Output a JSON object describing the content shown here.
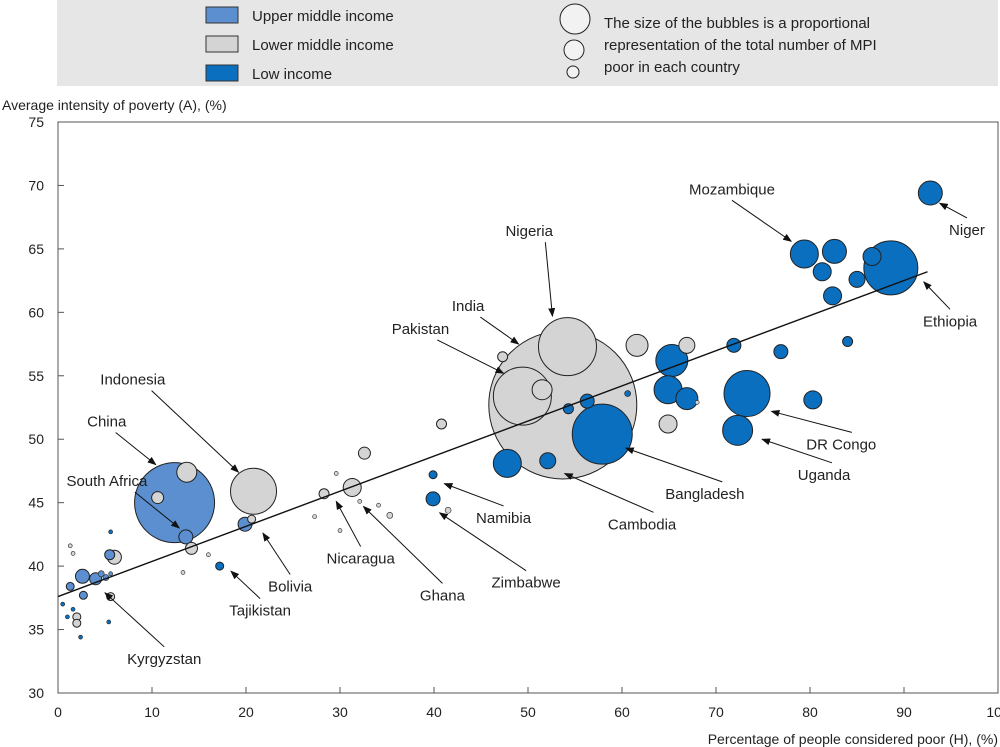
{
  "chart_data": {
    "type": "scatter",
    "xlabel": "Percentage of people considered poor (H), (%)",
    "ylabel": "Average intensity of poverty (A), (%)",
    "xlim": [
      0,
      100
    ],
    "ylim": [
      30,
      75
    ],
    "x_ticks": [
      0,
      10,
      20,
      30,
      40,
      50,
      60,
      70,
      80,
      90,
      100
    ],
    "y_ticks": [
      30,
      35,
      40,
      45,
      50,
      55,
      60,
      65,
      70,
      75
    ],
    "grid": false,
    "legend": {
      "placement": "top",
      "income_groups": [
        {
          "key": "upper",
          "label": "Upper middle income",
          "color": "#5b8fd0"
        },
        {
          "key": "lower",
          "label": "Lower middle income",
          "color": "#d4d4d4"
        },
        {
          "key": "low",
          "label": "Low income",
          "color": "#0b6fbf"
        }
      ],
      "size_note": [
        "The size of the bubbles is a proportional",
        "representation of the total number of MPI",
        "poor in each country"
      ]
    },
    "trendline": {
      "x": [
        0,
        92.5
      ],
      "y": [
        37.6,
        63.2
      ]
    },
    "points": [
      {
        "x": 53.7,
        "y": 52.7,
        "r": 74,
        "group": "lower"
      },
      {
        "x": 54.2,
        "y": 57.3,
        "r": 29,
        "group": "lower"
      },
      {
        "x": 49.4,
        "y": 53.4,
        "r": 29,
        "group": "lower"
      },
      {
        "x": 57.9,
        "y": 50.4,
        "r": 30,
        "group": "low"
      },
      {
        "x": 12.4,
        "y": 45.0,
        "r": 40,
        "group": "upper"
      },
      {
        "x": 20.8,
        "y": 45.9,
        "r": 23,
        "group": "lower"
      },
      {
        "x": 88.6,
        "y": 63.5,
        "r": 27,
        "group": "low"
      },
      {
        "x": 73.3,
        "y": 53.6,
        "r": 23,
        "group": "low"
      },
      {
        "x": 65.3,
        "y": 56.2,
        "r": 16,
        "group": "low"
      },
      {
        "x": 64.9,
        "y": 53.9,
        "r": 14,
        "group": "low"
      },
      {
        "x": 47.8,
        "y": 48.1,
        "r": 14,
        "group": "low"
      },
      {
        "x": 72.3,
        "y": 50.7,
        "r": 15,
        "group": "low"
      },
      {
        "x": 79.4,
        "y": 64.6,
        "r": 14,
        "group": "low"
      },
      {
        "x": 82.6,
        "y": 64.8,
        "r": 12,
        "group": "low"
      },
      {
        "x": 86.6,
        "y": 64.4,
        "r": 9,
        "group": "low"
      },
      {
        "x": 92.8,
        "y": 69.4,
        "r": 12,
        "group": "low"
      },
      {
        "x": 81.3,
        "y": 63.2,
        "r": 9,
        "group": "low"
      },
      {
        "x": 82.4,
        "y": 61.3,
        "r": 9,
        "group": "low"
      },
      {
        "x": 85.0,
        "y": 62.6,
        "r": 8,
        "group": "low"
      },
      {
        "x": 84.0,
        "y": 57.7,
        "r": 5,
        "group": "low"
      },
      {
        "x": 80.3,
        "y": 53.1,
        "r": 9,
        "group": "low"
      },
      {
        "x": 76.9,
        "y": 56.9,
        "r": 7,
        "group": "low"
      },
      {
        "x": 71.9,
        "y": 57.4,
        "r": 7,
        "group": "low"
      },
      {
        "x": 66.9,
        "y": 53.2,
        "r": 11,
        "group": "low"
      },
      {
        "x": 61.6,
        "y": 57.4,
        "r": 11,
        "group": "lower"
      },
      {
        "x": 66.9,
        "y": 57.4,
        "r": 8,
        "group": "lower"
      },
      {
        "x": 64.9,
        "y": 51.2,
        "r": 9,
        "group": "lower"
      },
      {
        "x": 56.3,
        "y": 53.0,
        "r": 7,
        "group": "low"
      },
      {
        "x": 54.3,
        "y": 52.4,
        "r": 5,
        "group": "low"
      },
      {
        "x": 52.1,
        "y": 48.3,
        "r": 8,
        "group": "low"
      },
      {
        "x": 60.6,
        "y": 53.6,
        "r": 3,
        "group": "low"
      },
      {
        "x": 51.5,
        "y": 53.9,
        "r": 10,
        "group": "lower"
      },
      {
        "x": 47.3,
        "y": 56.5,
        "r": 5,
        "group": "lower"
      },
      {
        "x": 68.0,
        "y": 52.9,
        "r": 2,
        "group": "lower"
      },
      {
        "x": 13.7,
        "y": 47.4,
        "r": 10,
        "group": "lower"
      },
      {
        "x": 10.6,
        "y": 45.4,
        "r": 6,
        "group": "lower"
      },
      {
        "x": 13.6,
        "y": 42.3,
        "r": 7,
        "group": "upper"
      },
      {
        "x": 14.2,
        "y": 41.4,
        "r": 6,
        "group": "lower"
      },
      {
        "x": 19.9,
        "y": 43.3,
        "r": 7,
        "group": "upper"
      },
      {
        "x": 20.6,
        "y": 43.7,
        "r": 4,
        "group": "lower"
      },
      {
        "x": 17.2,
        "y": 40.0,
        "r": 4,
        "group": "low"
      },
      {
        "x": 16.0,
        "y": 40.9,
        "r": 2,
        "group": "lower"
      },
      {
        "x": 13.3,
        "y": 39.5,
        "r": 2,
        "group": "lower"
      },
      {
        "x": 5.5,
        "y": 40.9,
        "r": 5,
        "group": "upper"
      },
      {
        "x": 6.0,
        "y": 40.7,
        "r": 7,
        "group": "lower"
      },
      {
        "x": 2.6,
        "y": 39.2,
        "r": 7,
        "group": "upper"
      },
      {
        "x": 4.0,
        "y": 39.0,
        "r": 6,
        "group": "upper"
      },
      {
        "x": 4.6,
        "y": 39.4,
        "r": 3,
        "group": "upper"
      },
      {
        "x": 5.1,
        "y": 39.1,
        "r": 3,
        "group": "upper"
      },
      {
        "x": 5.6,
        "y": 39.4,
        "r": 2,
        "group": "upper"
      },
      {
        "x": 1.3,
        "y": 38.4,
        "r": 4,
        "group": "upper"
      },
      {
        "x": 2.7,
        "y": 37.7,
        "r": 4,
        "group": "upper"
      },
      {
        "x": 5.6,
        "y": 37.6,
        "r": 4,
        "group": "lower"
      },
      {
        "x": 2.0,
        "y": 36.0,
        "r": 4,
        "group": "lower"
      },
      {
        "x": 2.0,
        "y": 35.5,
        "r": 4,
        "group": "lower"
      },
      {
        "x": 2.4,
        "y": 34.4,
        "r": 2,
        "group": "low"
      },
      {
        "x": 0.5,
        "y": 37.0,
        "r": 2,
        "group": "low"
      },
      {
        "x": 1.6,
        "y": 36.6,
        "r": 2,
        "group": "low"
      },
      {
        "x": 1.0,
        "y": 36.0,
        "r": 2,
        "group": "low"
      },
      {
        "x": 5.4,
        "y": 35.6,
        "r": 2,
        "group": "low"
      },
      {
        "x": 5.6,
        "y": 42.7,
        "r": 2,
        "group": "low"
      },
      {
        "x": 1.3,
        "y": 41.6,
        "r": 2,
        "group": "lower"
      },
      {
        "x": 1.6,
        "y": 41.0,
        "r": 2,
        "group": "lower"
      },
      {
        "x": 28.3,
        "y": 45.7,
        "r": 5,
        "group": "lower"
      },
      {
        "x": 31.3,
        "y": 46.2,
        "r": 9,
        "group": "lower"
      },
      {
        "x": 32.6,
        "y": 48.9,
        "r": 6,
        "group": "lower"
      },
      {
        "x": 29.6,
        "y": 47.3,
        "r": 2,
        "group": "lower"
      },
      {
        "x": 27.3,
        "y": 43.9,
        "r": 2,
        "group": "lower"
      },
      {
        "x": 32.1,
        "y": 45.1,
        "r": 2,
        "group": "lower"
      },
      {
        "x": 30.0,
        "y": 42.8,
        "r": 2,
        "group": "lower"
      },
      {
        "x": 35.3,
        "y": 44.0,
        "r": 3,
        "group": "lower"
      },
      {
        "x": 34.1,
        "y": 44.8,
        "r": 2,
        "group": "lower"
      },
      {
        "x": 40.8,
        "y": 51.2,
        "r": 5,
        "group": "lower"
      },
      {
        "x": 39.9,
        "y": 47.2,
        "r": 4,
        "group": "low"
      },
      {
        "x": 39.9,
        "y": 45.3,
        "r": 7,
        "group": "low"
      },
      {
        "x": 41.5,
        "y": 44.4,
        "r": 3,
        "group": "lower"
      }
    ],
    "annotations": [
      {
        "label": "Mozambique",
        "tx": 71.7,
        "ty": 69.3,
        "ax": 78.0,
        "ay": 65.6,
        "anchor": "middle"
      },
      {
        "label": "Niger",
        "tx": 96.7,
        "ty": 66.1,
        "ax": 93.8,
        "ay": 68.6,
        "anchor": "middle"
      },
      {
        "label": "Ethiopia",
        "tx": 94.9,
        "ty": 58.9,
        "ax": 92.1,
        "ay": 62.4,
        "anchor": "middle"
      },
      {
        "label": "Nigeria",
        "tx": 47.6,
        "ty": 66.0,
        "ax": 52.6,
        "ay": 59.7,
        "anchor": "start"
      },
      {
        "label": "India",
        "tx": 41.9,
        "ty": 60.1,
        "ax": 49.0,
        "ay": 57.5,
        "anchor": "start"
      },
      {
        "label": "Pakistan",
        "tx": 35.5,
        "ty": 58.3,
        "ax": 47.4,
        "ay": 55.2,
        "anchor": "start"
      },
      {
        "label": "Bangladesh",
        "tx": 64.6,
        "ty": 45.3,
        "ax": 60.4,
        "ay": 49.3,
        "anchor": "start"
      },
      {
        "label": "Cambodia",
        "tx": 58.5,
        "ty": 42.9,
        "ax": 53.9,
        "ay": 47.3,
        "anchor": "start"
      },
      {
        "label": "DR Congo",
        "tx": 79.6,
        "ty": 49.2,
        "ax": 75.9,
        "ay": 52.2,
        "anchor": "start"
      },
      {
        "label": "Uganda",
        "tx": 78.7,
        "ty": 46.8,
        "ax": 74.9,
        "ay": 50.0,
        "anchor": "start"
      },
      {
        "label": "Indonesia",
        "tx": 4.5,
        "ty": 54.3,
        "ax": 19.2,
        "ay": 47.4,
        "anchor": "start"
      },
      {
        "label": "China",
        "tx": 3.1,
        "ty": 51.0,
        "ax": 10.4,
        "ay": 48.0,
        "anchor": "start"
      },
      {
        "label": "South Africa",
        "tx": 0.9,
        "ty": 46.3,
        "ax": 12.9,
        "ay": 43.0,
        "anchor": "start"
      },
      {
        "label": "Bolivia",
        "tx": 24.7,
        "ty": 38.0,
        "ax": 21.8,
        "ay": 42.6,
        "anchor": "middle"
      },
      {
        "label": "Tajikistan",
        "tx": 21.5,
        "ty": 36.1,
        "ax": 18.4,
        "ay": 39.6,
        "anchor": "middle"
      },
      {
        "label": "Kyrgyzstan",
        "tx": 11.3,
        "ty": 32.3,
        "ax": 5.0,
        "ay": 37.9,
        "anchor": "middle"
      },
      {
        "label": "Nicaragua",
        "tx": 32.2,
        "ty": 40.2,
        "ax": 29.6,
        "ay": 45.1,
        "anchor": "middle"
      },
      {
        "label": "Ghana",
        "tx": 40.9,
        "ty": 37.3,
        "ax": 32.5,
        "ay": 44.7,
        "anchor": "middle"
      },
      {
        "label": "Namibia",
        "tx": 47.4,
        "ty": 43.4,
        "ax": 41.1,
        "ay": 46.5,
        "anchor": "middle"
      },
      {
        "label": "Zimbabwe",
        "tx": 49.8,
        "ty": 38.3,
        "ax": 40.6,
        "ay": 44.2,
        "anchor": "middle"
      }
    ]
  }
}
